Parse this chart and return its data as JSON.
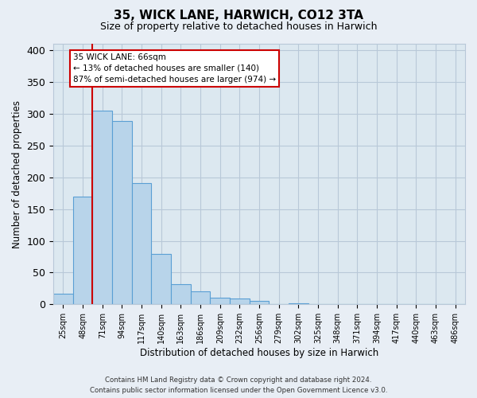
{
  "title": "35, WICK LANE, HARWICH, CO12 3TA",
  "subtitle": "Size of property relative to detached houses in Harwich",
  "xlabel": "Distribution of detached houses by size in Harwich",
  "ylabel": "Number of detached properties",
  "bar_labels": [
    "25sqm",
    "48sqm",
    "71sqm",
    "94sqm",
    "117sqm",
    "140sqm",
    "163sqm",
    "186sqm",
    "209sqm",
    "232sqm",
    "256sqm",
    "279sqm",
    "302sqm",
    "325sqm",
    "348sqm",
    "371sqm",
    "394sqm",
    "417sqm",
    "440sqm",
    "463sqm",
    "486sqm"
  ],
  "bar_values": [
    17,
    169,
    305,
    288,
    191,
    79,
    32,
    20,
    10,
    9,
    5,
    0,
    2,
    0,
    0,
    0,
    0,
    0,
    1,
    0,
    1
  ],
  "bar_color": "#b8d4ea",
  "bar_edge_color": "#5a9fd4",
  "vline_color": "#cc0000",
  "annotation_title": "35 WICK LANE: 66sqm",
  "annotation_line2": "← 13% of detached houses are smaller (140)",
  "annotation_line3": "87% of semi-detached houses are larger (974) →",
  "ylim": [
    0,
    410
  ],
  "yticks": [
    0,
    50,
    100,
    150,
    200,
    250,
    300,
    350,
    400
  ],
  "footer_line1": "Contains HM Land Registry data © Crown copyright and database right 2024.",
  "footer_line2": "Contains public sector information licensed under the Open Government Licence v3.0.",
  "bg_color": "#e8eef5",
  "plot_bg_color": "#dce8f0",
  "grid_color": "#b8c8d8"
}
